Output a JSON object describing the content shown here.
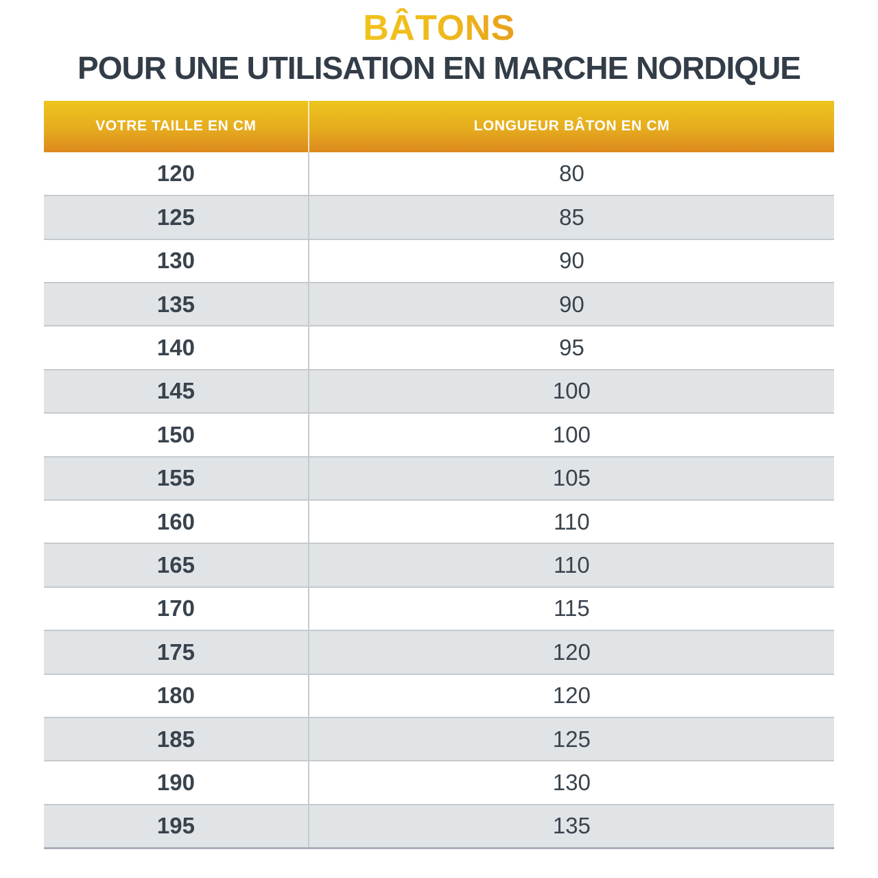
{
  "title": "BÂTONS",
  "subtitle": "POUR UNE UTILISATION EN MARCHE NORDIQUE",
  "colors": {
    "title_gradient_start": "#f4c91b",
    "title_gradient_end": "#e0861f",
    "header_gradient_top": "#edc51d",
    "header_gradient_bottom": "#dc891e",
    "header_text": "#ffffff",
    "subtitle_text": "#333d48",
    "cell_text": "#39434d",
    "row_bg": "#ffffff",
    "row_alt_bg": "#e1e4e7",
    "row_border": "#c5cace",
    "table_bottom_border": "#a9aeb8"
  },
  "chart_data": {
    "type": "table",
    "title": "BÂTONS — POUR UNE UTILISATION EN MARCHE NORDIQUE",
    "columns": [
      "VOTRE TAILLE EN CM",
      "LONGUEUR BÂTON EN CM"
    ],
    "rows": [
      [
        120,
        80
      ],
      [
        125,
        85
      ],
      [
        130,
        90
      ],
      [
        135,
        90
      ],
      [
        140,
        95
      ],
      [
        145,
        100
      ],
      [
        150,
        100
      ],
      [
        155,
        105
      ],
      [
        160,
        110
      ],
      [
        165,
        110
      ],
      [
        170,
        115
      ],
      [
        175,
        120
      ],
      [
        180,
        120
      ],
      [
        185,
        125
      ],
      [
        190,
        130
      ],
      [
        195,
        135
      ]
    ]
  }
}
